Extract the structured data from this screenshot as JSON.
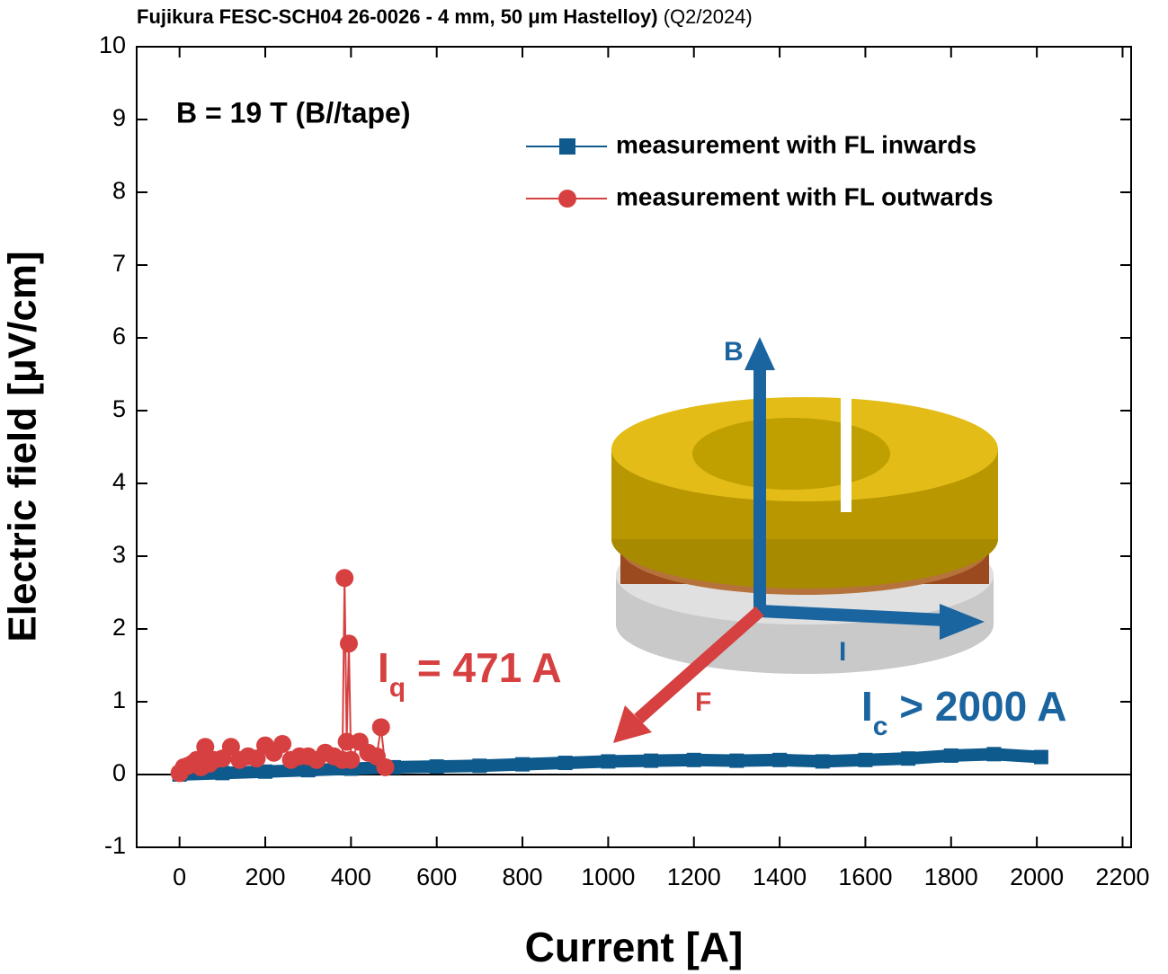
{
  "chart_data": {
    "type": "line",
    "title": "Fujikura FESC-SCH04 26-0026 - 4 mm, 50 μm Hastelloy)",
    "title_note": "(Q2/2024)",
    "x_label": "Current [A]",
    "y_label": "Electric field [μV/cm]",
    "xlim": [
      -100,
      2220
    ],
    "ylim": [
      -1,
      10
    ],
    "xticks": [
      0,
      200,
      400,
      600,
      800,
      1000,
      1200,
      1400,
      1600,
      1800,
      2000,
      2200
    ],
    "yticks": [
      -1,
      0,
      1,
      2,
      3,
      4,
      5,
      6,
      7,
      8,
      9,
      10
    ],
    "legend": "top-right",
    "annotations": {
      "field": "B = 19 T (B//tape)",
      "iq": {
        "text": "I",
        "sub": "q",
        "rest": " = 471 A"
      },
      "ic": {
        "text": "I",
        "sub": "c",
        "rest": " > 2000 A"
      },
      "inset_b": "B",
      "inset_i": "I",
      "inset_f": "F"
    },
    "series": [
      {
        "name": "measurement with FL inwards",
        "color": "#0e5a8c",
        "marker": "square",
        "x": [
          0,
          100,
          200,
          300,
          400,
          500,
          600,
          700,
          800,
          900,
          1000,
          1100,
          1200,
          1300,
          1400,
          1500,
          1600,
          1700,
          1800,
          1900,
          2010
        ],
        "values": [
          0.0,
          0.02,
          0.04,
          0.06,
          0.08,
          0.1,
          0.11,
          0.12,
          0.14,
          0.16,
          0.18,
          0.19,
          0.2,
          0.19,
          0.2,
          0.18,
          0.2,
          0.22,
          0.26,
          0.28,
          0.24
        ]
      },
      {
        "name": "measurement with FL outwards",
        "color": "#d64040",
        "marker": "circle",
        "x": [
          0,
          10,
          20,
          30,
          40,
          50,
          60,
          70,
          80,
          100,
          120,
          140,
          160,
          180,
          200,
          220,
          240,
          260,
          280,
          300,
          320,
          340,
          360,
          380,
          385,
          390,
          395,
          400,
          420,
          440,
          460,
          470,
          480
        ],
        "values": [
          0.02,
          0.1,
          0.12,
          0.15,
          0.2,
          0.1,
          0.38,
          0.15,
          0.2,
          0.22,
          0.38,
          0.2,
          0.25,
          0.22,
          0.4,
          0.3,
          0.42,
          0.2,
          0.25,
          0.25,
          0.2,
          0.3,
          0.25,
          0.2,
          2.7,
          0.45,
          1.8,
          0.2,
          0.45,
          0.3,
          0.25,
          0.65,
          0.1
        ]
      }
    ]
  }
}
